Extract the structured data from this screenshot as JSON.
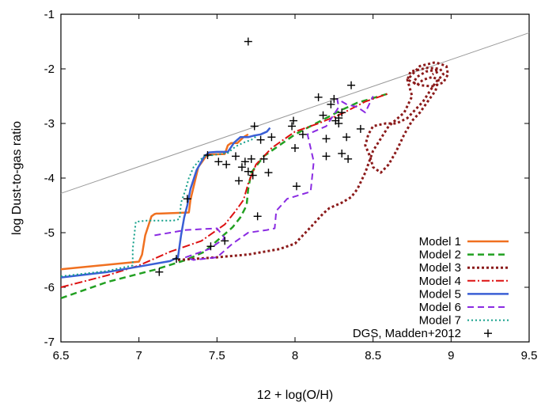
{
  "chart_data": {
    "type": "line",
    "xlabel": "12 + log(O/H)",
    "ylabel": "log Dust-to-gas ratio",
    "xlim": [
      6.5,
      9.5
    ],
    "ylim": [
      -7,
      -1
    ],
    "xticks": [
      6.5,
      7,
      7.5,
      8,
      8.5,
      9,
      9.5
    ],
    "yticks": [
      -7,
      -6,
      -5,
      -4,
      -3,
      -2,
      -1
    ],
    "xtick_labels": [
      "6.5",
      "7",
      "7.5",
      "8",
      "8.5",
      "9",
      "9.5"
    ],
    "ytick_labels": [
      "-7",
      "-6",
      "-5",
      "-4",
      "-3",
      "-2",
      "-1"
    ],
    "grid": false,
    "legend_position": "bottom-right",
    "reference_line": {
      "x": [
        6.5,
        9.5
      ],
      "y": [
        -4.28,
        -1.34
      ],
      "color": "#999999"
    },
    "series": [
      {
        "name": "Model 1",
        "color": "#f07020",
        "dash": "",
        "width": 2.5,
        "x": [
          6.5,
          7.0,
          7.02,
          7.04,
          7.08,
          7.1,
          7.11,
          7.13,
          7.32,
          7.33,
          7.38,
          7.43,
          7.45,
          7.55,
          7.57,
          7.59,
          7.63,
          7.67,
          7.7
        ],
        "y": [
          -5.67,
          -5.53,
          -5.4,
          -5.05,
          -4.7,
          -4.66,
          -4.65,
          -4.65,
          -4.63,
          -4.4,
          -3.8,
          -3.6,
          -3.57,
          -3.56,
          -3.4,
          -3.36,
          -3.36,
          -3.25,
          -3.2
        ]
      },
      {
        "name": "Model 2",
        "color": "#22a022",
        "dash": "8,5",
        "width": 2.5,
        "x": [
          6.5,
          6.8,
          7.1,
          7.3,
          7.42,
          7.52,
          7.6,
          7.65,
          7.69,
          7.7,
          7.72,
          7.76,
          7.8,
          7.9,
          8.0,
          8.1,
          8.2,
          8.3,
          8.4,
          8.6
        ],
        "y": [
          -6.2,
          -5.9,
          -5.68,
          -5.5,
          -5.35,
          -5.1,
          -4.9,
          -4.72,
          -4.5,
          -4.2,
          -3.9,
          -3.75,
          -3.6,
          -3.4,
          -3.2,
          -3.05,
          -2.9,
          -2.75,
          -2.62,
          -2.45
        ]
      },
      {
        "name": "Model 3",
        "color": "#8b1a1a",
        "dash": "3,3",
        "width": 3,
        "x": [
          7.25,
          7.5,
          7.7,
          7.9,
          8.0,
          8.1,
          8.18,
          8.22,
          8.3,
          8.36,
          8.4,
          8.45,
          8.5,
          8.6,
          8.7,
          8.75,
          8.72,
          8.8,
          8.9,
          8.97,
          8.98,
          8.95,
          8.88,
          8.8,
          8.72,
          8.74,
          8.85,
          8.93,
          8.95,
          8.9,
          8.82,
          8.72,
          8.65,
          8.58,
          8.5,
          8.47,
          8.45,
          8.48,
          8.5,
          8.55,
          8.6,
          8.65,
          8.7,
          8.75,
          8.8,
          8.85,
          8.9,
          8.92,
          8.88,
          8.82,
          8.78,
          8.76,
          8.78,
          8.84,
          8.9,
          8.92,
          8.88
        ],
        "y": [
          -5.5,
          -5.45,
          -5.4,
          -5.3,
          -5.2,
          -4.9,
          -4.65,
          -4.55,
          -4.45,
          -4.35,
          -4.2,
          -3.9,
          -3.5,
          -3.05,
          -2.8,
          -2.5,
          -2.2,
          -1.95,
          -1.88,
          -1.95,
          -2.1,
          -2.25,
          -2.32,
          -2.3,
          -2.2,
          -2.05,
          -1.98,
          -2.0,
          -2.1,
          -2.25,
          -2.6,
          -2.9,
          -3.0,
          -3.0,
          -3.05,
          -3.2,
          -3.4,
          -3.6,
          -3.8,
          -3.9,
          -3.75,
          -3.5,
          -3.2,
          -2.95,
          -2.8,
          -2.6,
          -2.4,
          -2.2,
          -2.15,
          -2.2,
          -2.3,
          -2.25,
          -2.15,
          -2.05,
          -2.02,
          -2.05,
          -2.1
        ]
      },
      {
        "name": "Model 4",
        "color": "#dd1111",
        "dash": "10,3,2,3",
        "width": 2,
        "x": [
          6.5,
          6.8,
          7.0,
          7.2,
          7.4,
          7.55,
          7.62,
          7.67,
          7.7,
          7.75,
          7.85,
          8.0,
          8.15,
          8.3,
          8.45,
          8.6
        ],
        "y": [
          -6.0,
          -5.78,
          -5.6,
          -5.35,
          -5.15,
          -4.85,
          -4.6,
          -4.4,
          -4.1,
          -3.75,
          -3.45,
          -3.15,
          -3.0,
          -2.82,
          -2.6,
          -2.45
        ]
      },
      {
        "name": "Model 5",
        "color": "#3a5fd5",
        "dash": "",
        "width": 2.5,
        "x": [
          6.5,
          6.8,
          7.0,
          7.2,
          7.25,
          7.27,
          7.29,
          7.31,
          7.33,
          7.37,
          7.42,
          7.45,
          7.5,
          7.57,
          7.61,
          7.65,
          7.7,
          7.74,
          7.78,
          7.82,
          7.84
        ],
        "y": [
          -5.82,
          -5.72,
          -5.62,
          -5.52,
          -5.45,
          -5.05,
          -4.72,
          -4.5,
          -4.2,
          -3.85,
          -3.6,
          -3.53,
          -3.52,
          -3.52,
          -3.35,
          -3.25,
          -3.25,
          -3.22,
          -3.2,
          -3.15,
          -3.08
        ]
      },
      {
        "name": "Model 6",
        "color": "#8a2be2",
        "dash": "8,5",
        "width": 2,
        "x": [
          7.1,
          7.3,
          7.5,
          7.55,
          7.45,
          7.3,
          7.35,
          7.5,
          7.6,
          7.7,
          7.82,
          7.87,
          7.88,
          7.95,
          8.1,
          8.12,
          8.08,
          8.2,
          8.28,
          8.27,
          8.33,
          8.4,
          8.45,
          8.5
        ],
        "y": [
          -5.05,
          -4.95,
          -4.92,
          -5.1,
          -5.3,
          -5.45,
          -5.5,
          -5.45,
          -5.2,
          -5.0,
          -4.95,
          -4.92,
          -4.6,
          -4.38,
          -4.25,
          -3.7,
          -3.2,
          -3.05,
          -2.7,
          -2.55,
          -2.65,
          -2.7,
          -2.8,
          -2.5
        ]
      },
      {
        "name": "Model 7",
        "color": "#14a08a",
        "dash": "2,3",
        "width": 2,
        "x": [
          6.5,
          6.8,
          6.96,
          6.96,
          6.98,
          7.05,
          7.15,
          7.22,
          7.26,
          7.27,
          7.3,
          7.32,
          7.35,
          7.38,
          7.42,
          7.5,
          7.57,
          7.62,
          7.67,
          7.72,
          7.76
        ],
        "y": [
          -5.8,
          -5.7,
          -5.6,
          -5.3,
          -4.8,
          -4.78,
          -4.78,
          -4.78,
          -4.75,
          -4.45,
          -4.2,
          -4.0,
          -3.8,
          -3.7,
          -3.6,
          -3.57,
          -3.54,
          -3.42,
          -3.35,
          -3.3,
          -3.22
        ]
      }
    ],
    "scatter": {
      "name": "DGS, Madden+2012",
      "x": [
        7.13,
        7.24,
        7.31,
        7.44,
        7.46,
        7.51,
        7.55,
        7.56,
        7.62,
        7.64,
        7.66,
        7.68,
        7.7,
        7.73,
        7.72,
        7.76,
        7.78,
        7.8,
        7.83,
        7.85,
        7.98,
        7.99,
        8.0,
        8.01,
        8.05,
        8.15,
        8.18,
        8.2,
        8.2,
        8.23,
        8.25,
        8.26,
        8.28,
        8.28,
        8.3,
        8.3,
        8.33,
        8.34,
        8.36,
        8.42,
        7.7,
        7.74
      ],
      "y": [
        -5.72,
        -5.48,
        -4.38,
        -3.58,
        -5.25,
        -3.7,
        -5.15,
        -3.75,
        -3.6,
        -4.05,
        -3.8,
        -3.7,
        -3.88,
        -3.95,
        -3.65,
        -4.7,
        -3.3,
        -3.65,
        -3.9,
        -3.25,
        -3.05,
        -2.95,
        -3.45,
        -4.15,
        -3.2,
        -2.52,
        -2.85,
        -3.28,
        -3.6,
        -2.65,
        -2.55,
        -2.95,
        -3.0,
        -2.9,
        -2.8,
        -3.55,
        -3.25,
        -3.65,
        -2.3,
        -3.1,
        -1.5,
        -3.05
      ]
    }
  }
}
